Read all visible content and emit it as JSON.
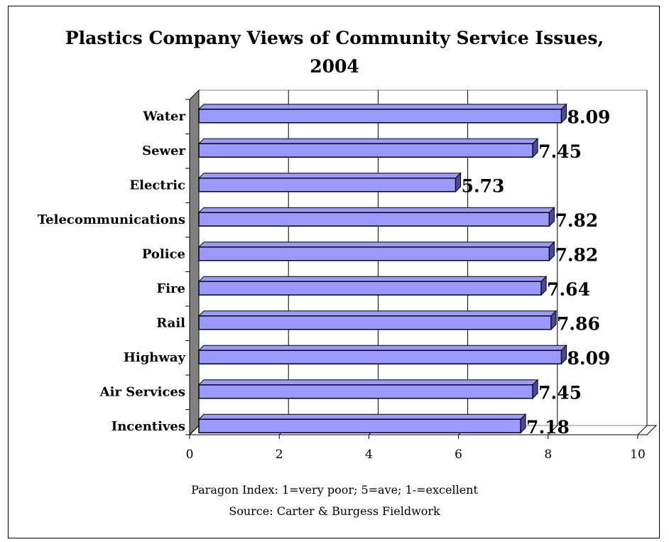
{
  "chart_data": {
    "type": "bar",
    "orientation": "horizontal",
    "title": "Plastics Company Views of Community Service Issues, 2004",
    "categories": [
      "Water",
      "Sewer",
      "Electric",
      "Telecommunications",
      "Police",
      "Fire",
      "Rail",
      "Highway",
      "Air Services",
      "Incentives"
    ],
    "values": [
      8.09,
      7.45,
      5.73,
      7.82,
      7.82,
      7.64,
      7.86,
      8.09,
      7.45,
      7.18
    ],
    "value_labels": [
      "8.09",
      "7.45",
      "5.73",
      "7.82",
      "7.82",
      "7.64",
      "7.86",
      "8.09",
      "7.45",
      "7.18"
    ],
    "xlim": [
      0,
      10
    ],
    "xticks": [
      "0",
      "2",
      "4",
      "6",
      "8",
      "10"
    ],
    "xlabel": "",
    "ylabel": "",
    "gridlines": "vertical",
    "style": "3d",
    "bar_color": "#9999ff",
    "bar_side_color": "#4a4a99",
    "wall_color": "#808080",
    "legend": "none"
  },
  "footnotes": {
    "index_note": "Paragon Index: 1=very poor; 5=ave; 1-=excellent",
    "source_note": "Source: Carter & Burgess Fieldwork"
  }
}
